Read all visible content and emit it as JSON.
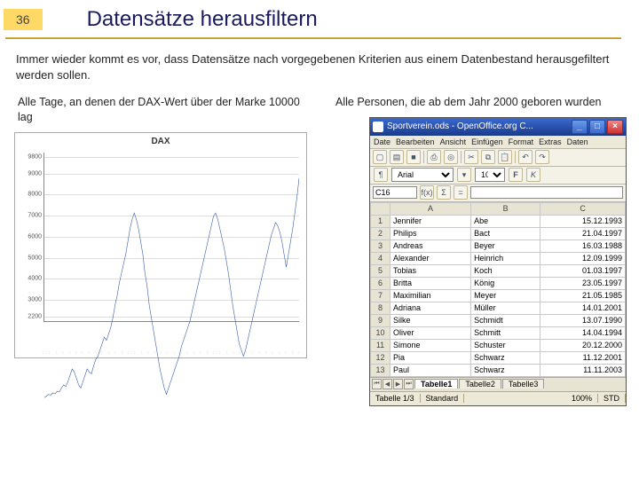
{
  "slide": {
    "number": "36",
    "title": "Datensätze herausfiltern",
    "intro": "Immer wieder kommt es vor, dass Datensätze nach vorgegebenen Kriterien aus einem Datenbestand herausgefiltert werden sollen.",
    "caption_left": "Alle Tage, an denen der DAX-Wert über der Marke 10000 lag",
    "caption_right": "Alle Personen, die ab dem Jahr 2000 geboren wurden",
    "colors": {
      "title": "#1a1a5e",
      "slide_num_bg": "#ffd966",
      "rule": "#b08820"
    }
  },
  "chart": {
    "type": "line",
    "title": "DAX",
    "ylabel": "",
    "ylim": [
      2000,
      10000
    ],
    "ytick_step": 1000,
    "yticks": [
      2200,
      3000,
      4000,
      5000,
      6000,
      7000,
      8000,
      9000,
      9800
    ],
    "line_color": "#3b5fad",
    "line_width": 1,
    "grid_color": "#dddddd",
    "background_color": "#ffffff",
    "x_n": 120,
    "values": [
      2300,
      2350,
      2400,
      2380,
      2450,
      2420,
      2500,
      2480,
      2600,
      2700,
      2650,
      2800,
      3000,
      3200,
      3100,
      2900,
      2700,
      2600,
      2800,
      3000,
      3200,
      3100,
      3050,
      3300,
      3500,
      3600,
      3800,
      4000,
      4200,
      4100,
      4300,
      4500,
      4800,
      5200,
      5500,
      5900,
      6200,
      6500,
      6800,
      7200,
      7600,
      7900,
      8100,
      7900,
      7600,
      7200,
      6800,
      6200,
      5800,
      5200,
      4800,
      4400,
      4000,
      3600,
      3200,
      2900,
      2600,
      2400,
      2600,
      2800,
      3000,
      3200,
      3400,
      3600,
      3900,
      4100,
      4300,
      4500,
      4700,
      5000,
      5300,
      5600,
      5900,
      6200,
      6500,
      6800,
      7100,
      7400,
      7700,
      8000,
      8100,
      7900,
      7600,
      7300,
      7000,
      6600,
      6200,
      5700,
      5200,
      4800,
      4400,
      4000,
      3800,
      3600,
      3800,
      4100,
      4400,
      4700,
      5000,
      5300,
      5600,
      5900,
      6200,
      6500,
      6800,
      7100,
      7400,
      7600,
      7800,
      7700,
      7500,
      7200,
      6800,
      6400,
      6800,
      7200,
      7600,
      8100,
      8600,
      9200
    ]
  },
  "oo": {
    "title": "Sportverein.ods - OpenOffice.org C...",
    "menu": [
      "Date",
      "Bearbeiten",
      "Ansicht",
      "Einfügen",
      "Format",
      "Extras",
      "Daten"
    ],
    "font_name": "Arial",
    "font_size": "10",
    "cell_name": "C16",
    "fx_label": "f(x)",
    "eq": "=",
    "columns": [
      "",
      "A",
      "B",
      "C"
    ],
    "rows": [
      [
        "1",
        "Jennifer",
        "Abe",
        "15.12.1993"
      ],
      [
        "2",
        "Philips",
        "Bact",
        "21.04.1997"
      ],
      [
        "3",
        "Andreas",
        "Beyer",
        "16.03.1988"
      ],
      [
        "4",
        "Alexander",
        "Heinrich",
        "12.09.1999"
      ],
      [
        "5",
        "Tobias",
        "Koch",
        "01.03.1997"
      ],
      [
        "6",
        "Britta",
        "König",
        "23.05.1997"
      ],
      [
        "7",
        "Maximilian",
        "Meyer",
        "21.05.1985"
      ],
      [
        "8",
        "Adriana",
        "Müller",
        "14.01.2001"
      ],
      [
        "9",
        "Silke",
        "Schmidt",
        "13.07.1990"
      ],
      [
        "10",
        "Oliver",
        "Schmitt",
        "14.04.1994"
      ],
      [
        "11",
        "Simone",
        "Schuster",
        "20.12.2000"
      ],
      [
        "12",
        "Pia",
        "Schwarz",
        "11.12.2001"
      ],
      [
        "13",
        "Paul",
        "Schwarz",
        "11.11.2003"
      ]
    ],
    "sheets": [
      "Tabelle1",
      "Tabelle2",
      "Tabelle3"
    ],
    "active_sheet": 0,
    "status": {
      "sheet": "Tabelle 1/3",
      "mode": "Standard",
      "zoom": "100%",
      "extra": "STD"
    },
    "colors": {
      "titlebar_from": "#3a6ad0",
      "titlebar_to": "#1a3a8a",
      "close": "#c33333",
      "panel": "#ece9d8"
    }
  }
}
